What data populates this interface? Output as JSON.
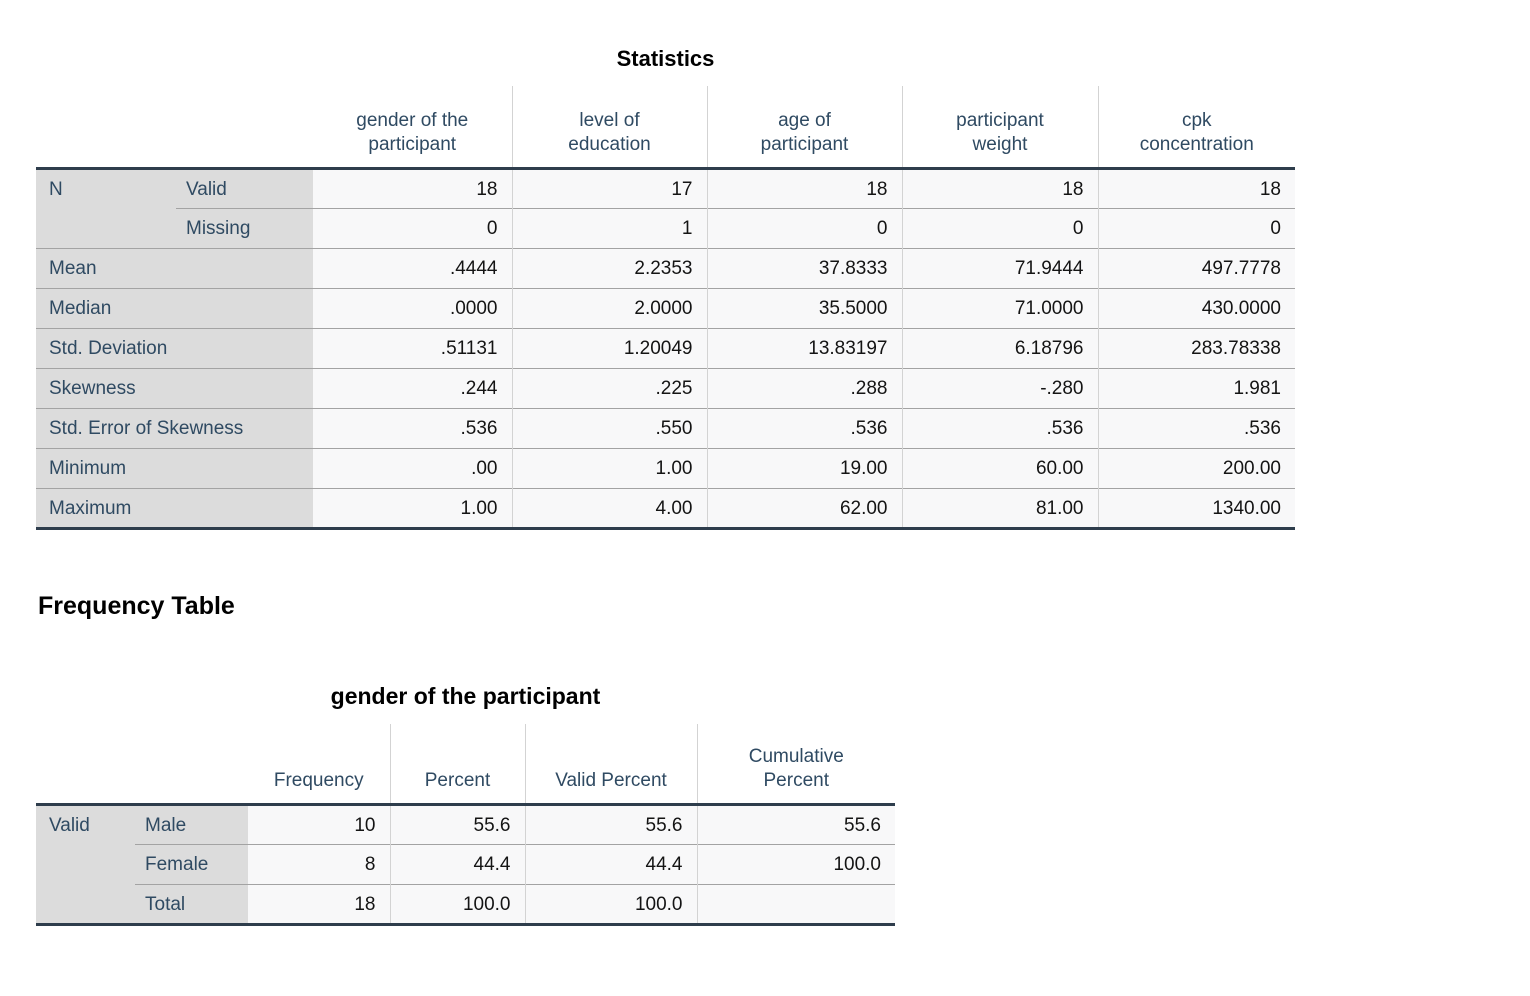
{
  "colors": {
    "header_text": "#2F4A62",
    "value_text": "#141414",
    "stub_background": "#DCDCDC",
    "cell_background": "#F8F8F9",
    "heavy_border": "#2E3D4C",
    "row_separator": "#A3A3A3",
    "column_separator": "#D3D3D3"
  },
  "statistics_table": {
    "title": "Statistics",
    "columns": [
      "gender of the\nparticipant",
      "level of\neducation",
      "age of\nparticipant",
      "participant\nweight",
      "cpk\nconcentration"
    ],
    "rows": [
      {
        "label": "N",
        "sublabel": "Valid",
        "values": [
          "18",
          "17",
          "18",
          "18",
          "18"
        ]
      },
      {
        "label": "",
        "sublabel": "Missing",
        "values": [
          "0",
          "1",
          "0",
          "0",
          "0"
        ]
      },
      {
        "label": "Mean",
        "sublabel": null,
        "values": [
          ".4444",
          "2.2353",
          "37.8333",
          "71.9444",
          "497.7778"
        ]
      },
      {
        "label": "Median",
        "sublabel": null,
        "values": [
          ".0000",
          "2.0000",
          "35.5000",
          "71.0000",
          "430.0000"
        ]
      },
      {
        "label": "Std. Deviation",
        "sublabel": null,
        "values": [
          ".51131",
          "1.20049",
          "13.83197",
          "6.18796",
          "283.78338"
        ]
      },
      {
        "label": "Skewness",
        "sublabel": null,
        "values": [
          ".244",
          ".225",
          ".288",
          "-.280",
          "1.981"
        ]
      },
      {
        "label": "Std. Error of Skewness",
        "sublabel": null,
        "values": [
          ".536",
          ".550",
          ".536",
          ".536",
          ".536"
        ]
      },
      {
        "label": "Minimum",
        "sublabel": null,
        "values": [
          ".00",
          "1.00",
          "19.00",
          "60.00",
          "200.00"
        ]
      },
      {
        "label": "Maximum",
        "sublabel": null,
        "values": [
          "1.00",
          "4.00",
          "62.00",
          "81.00",
          "1340.00"
        ]
      }
    ]
  },
  "frequency_section": {
    "heading": "Frequency Table",
    "table": {
      "title": "gender of the participant",
      "columns": [
        "Frequency",
        "Percent",
        "Valid Percent",
        "Cumulative\nPercent"
      ],
      "rows": [
        {
          "label": "Valid",
          "sublabel": "Male",
          "values": [
            "10",
            "55.6",
            "55.6",
            "55.6"
          ]
        },
        {
          "label": "",
          "sublabel": "Female",
          "values": [
            "8",
            "44.4",
            "44.4",
            "100.0"
          ]
        },
        {
          "label": "",
          "sublabel": "Total",
          "values": [
            "18",
            "100.0",
            "100.0",
            ""
          ]
        }
      ]
    }
  }
}
